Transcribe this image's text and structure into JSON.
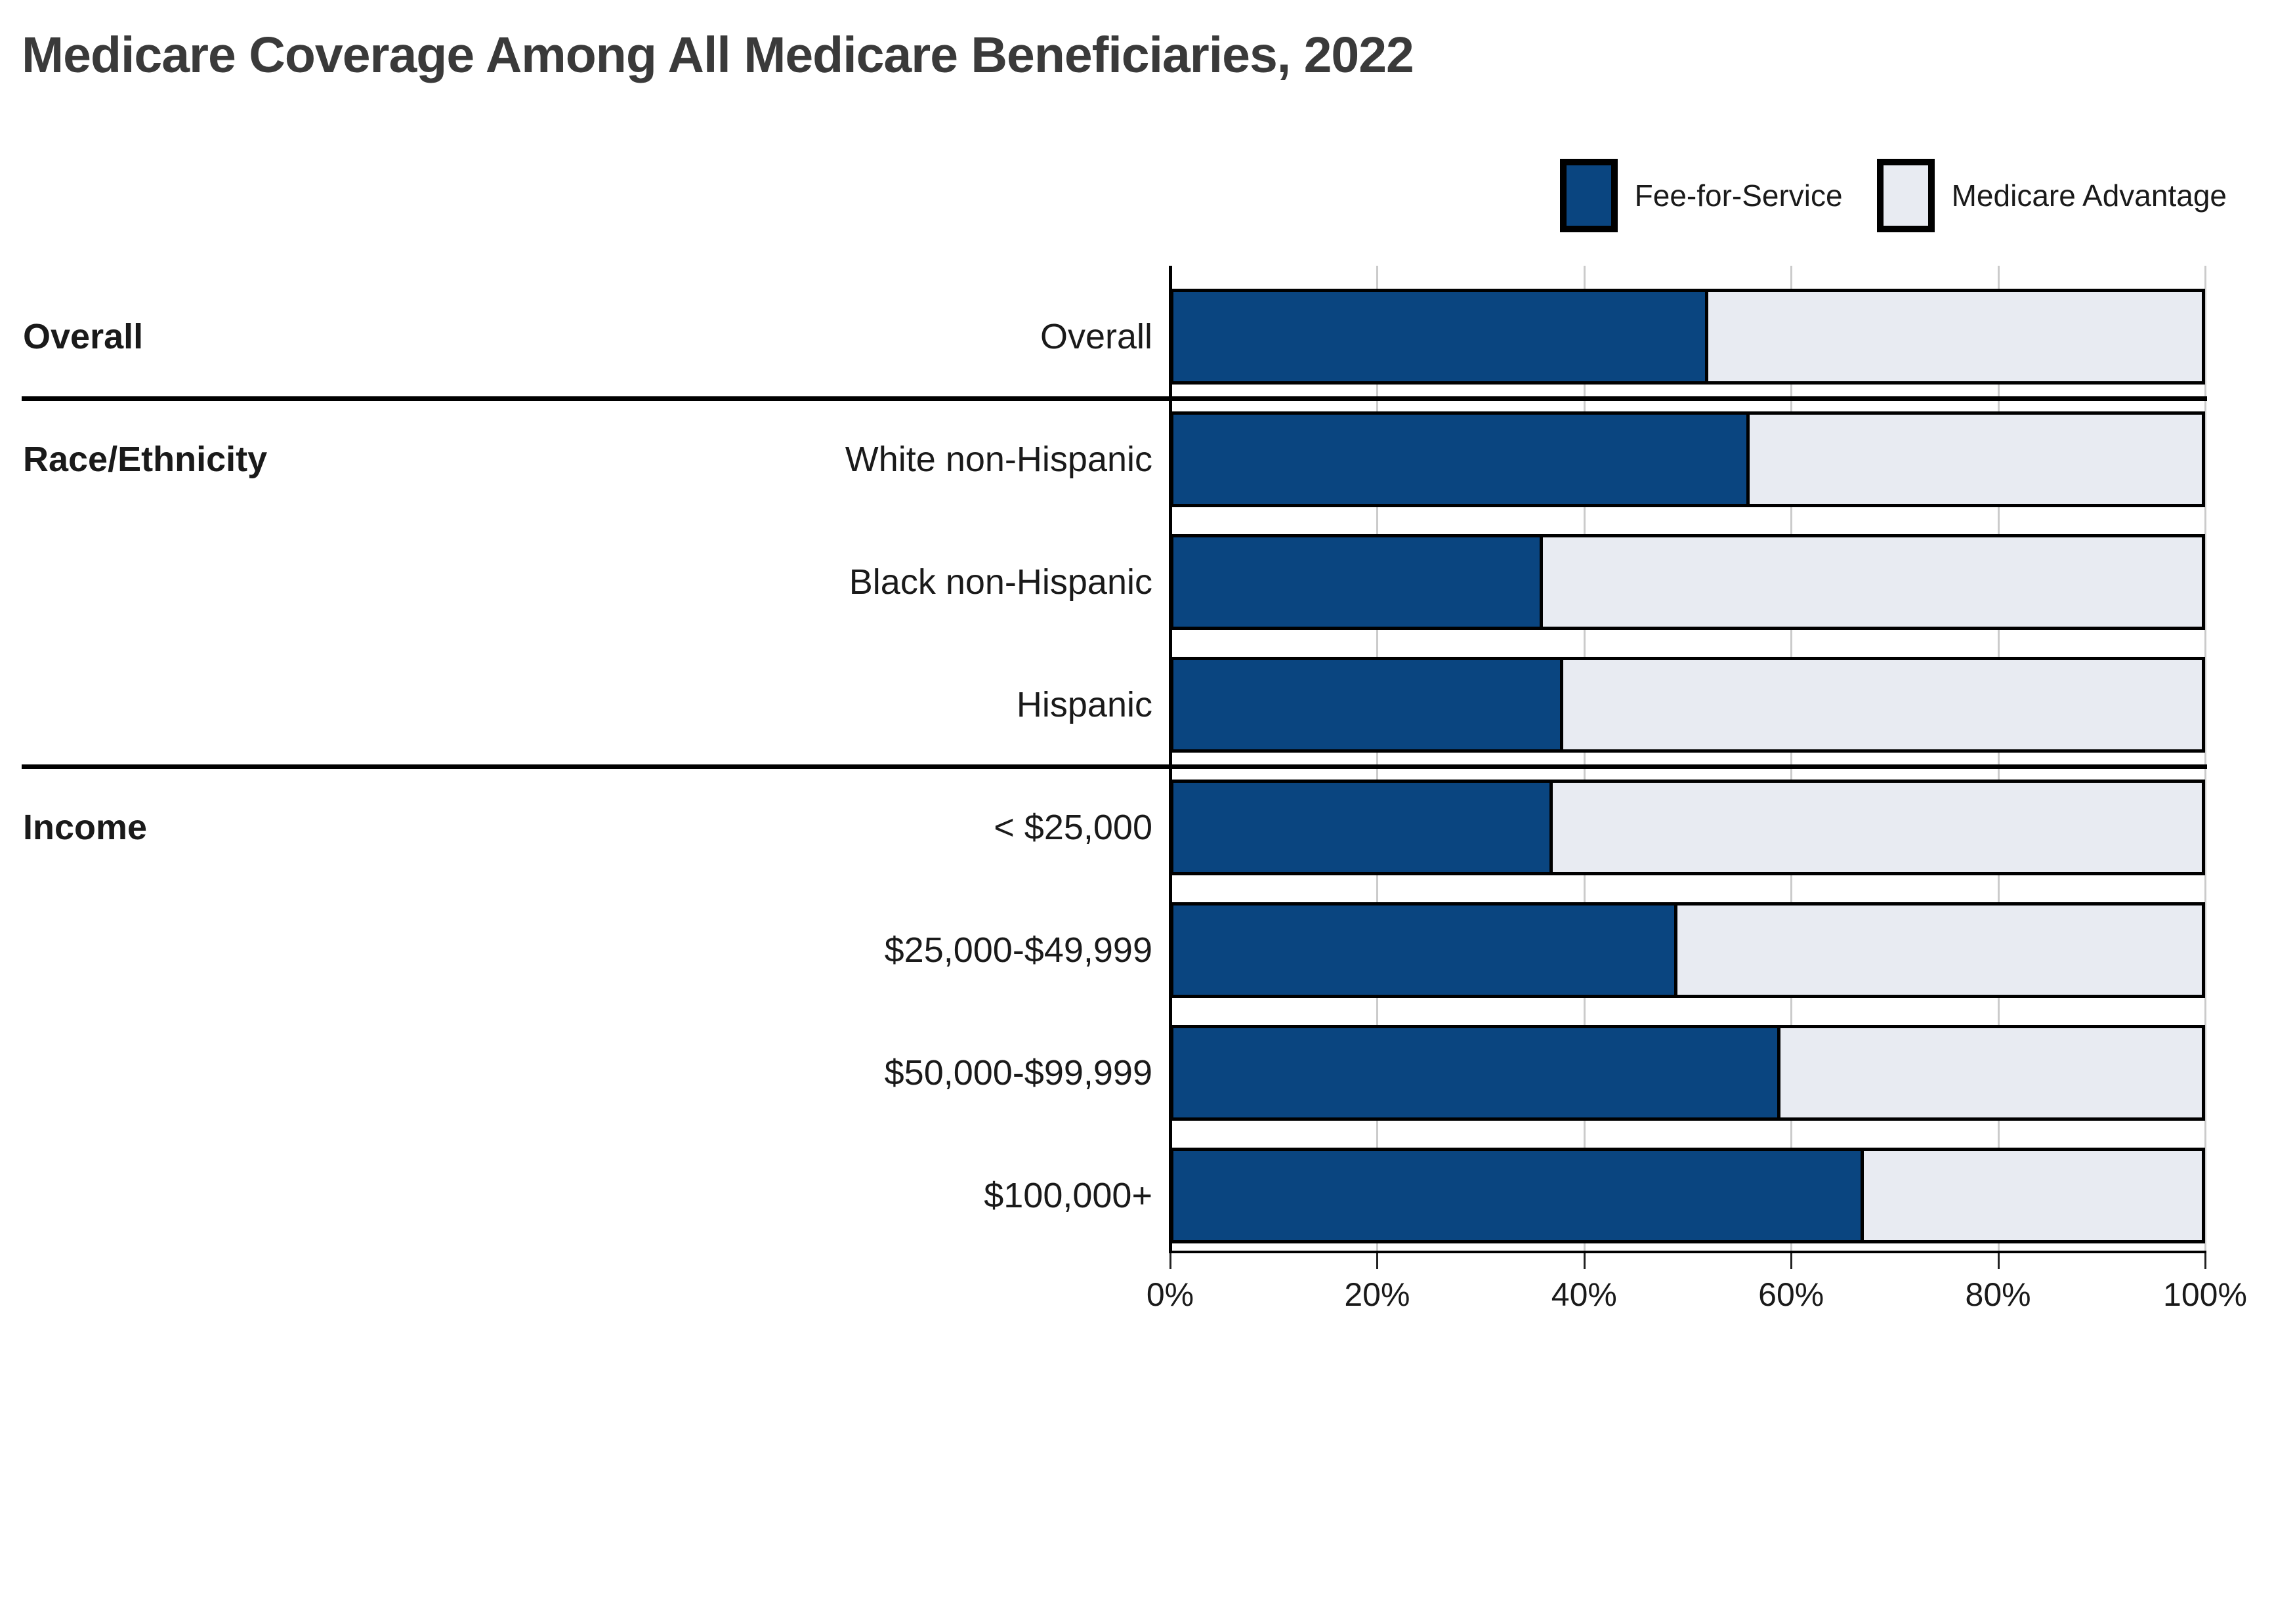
{
  "title": "Medicare Coverage Among All Medicare Beneficiaries, 2022",
  "legend": [
    {
      "label": "Fee-for-Service",
      "color": "#0A4580"
    },
    {
      "label": "Medicare Advantage",
      "color": "#E8EBF2"
    }
  ],
  "colors": {
    "fee_for_service": "#0A4580",
    "medicare_advantage": "#E8EBF2",
    "bar_border": "#000000",
    "gridline": "#cbcbcb",
    "title_text": "#3A3A3A"
  },
  "chart_data": {
    "type": "bar",
    "orientation": "horizontal-stacked",
    "title": "Medicare Coverage Among All Medicare Beneficiaries, 2022",
    "categories": [
      "Overall",
      "White non-Hispanic",
      "Black non-Hispanic",
      "Hispanic",
      "< $25,000",
      "$25,000-$49,999",
      "$50,000-$99,999",
      "$100,000+"
    ],
    "series": [
      {
        "name": "Fee-for-Service",
        "values": [
          52,
          56,
          36,
          38,
          37,
          49,
          59,
          67
        ]
      },
      {
        "name": "Medicare Advantage",
        "values": [
          48,
          44,
          64,
          62,
          63,
          51,
          41,
          33
        ]
      }
    ],
    "groups": [
      {
        "label": "Overall",
        "rows": [
          0
        ]
      },
      {
        "label": "Race/Ethnicity",
        "rows": [
          1,
          2,
          3
        ]
      },
      {
        "label": "Income",
        "rows": [
          4,
          5,
          6,
          7
        ]
      }
    ],
    "x_ticks": [
      "0%",
      "20%",
      "40%",
      "60%",
      "80%",
      "100%"
    ],
    "x_tick_values": [
      0,
      20,
      40,
      60,
      80,
      100
    ],
    "xlabel": "",
    "ylabel": "",
    "xlim": [
      0,
      100
    ],
    "grid": true,
    "legend_position": "top-right"
  }
}
